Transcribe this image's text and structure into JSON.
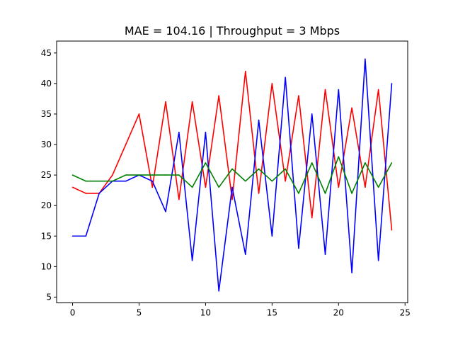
{
  "chart_data": {
    "type": "line",
    "title": "MAE = 104.16 | Throughput = 3 Mbps",
    "xlabel": "",
    "ylabel": "",
    "xlim": [
      -1.2,
      25.2
    ],
    "ylim": [
      4.05,
      46.95
    ],
    "xticks": [
      0,
      5,
      10,
      15,
      20,
      25
    ],
    "yticks": [
      5,
      10,
      15,
      20,
      25,
      30,
      35,
      40,
      45
    ],
    "grid": false,
    "x": [
      0,
      1,
      2,
      3,
      4,
      5,
      6,
      7,
      8,
      9,
      10,
      11,
      12,
      13,
      14,
      15,
      16,
      17,
      18,
      19,
      20,
      21,
      22,
      23,
      24
    ],
    "series": [
      {
        "color": "#ff0000",
        "x": [
          0,
          1,
          2,
          3,
          4,
          5,
          6,
          7,
          8,
          9,
          10,
          11,
          12,
          13,
          14,
          15,
          16,
          17,
          18,
          19,
          20,
          21,
          22,
          23,
          24
        ],
        "values": [
          23,
          22,
          22,
          25,
          30,
          35,
          23,
          37,
          21,
          37,
          23,
          38,
          21,
          42,
          22,
          40,
          24,
          38,
          18,
          39,
          23,
          36,
          23,
          39,
          16
        ]
      },
      {
        "color": "#0000ff",
        "x": [
          0,
          1,
          2,
          3,
          4,
          5,
          6,
          7,
          8,
          9,
          10,
          11,
          12,
          13,
          14,
          15,
          16,
          17,
          18,
          19,
          20,
          21,
          22,
          23,
          24
        ],
        "values": [
          15,
          15,
          22,
          24,
          24,
          25,
          24,
          19,
          32,
          11,
          32,
          6,
          23,
          12,
          34,
          15,
          41,
          13,
          35,
          12,
          39,
          9,
          44,
          11,
          40
        ]
      },
      {
        "color": "#008000",
        "x": [
          0,
          1,
          2,
          3,
          4,
          5,
          6,
          7,
          8,
          9,
          10,
          11,
          12,
          13,
          14,
          15,
          16,
          17,
          18,
          19,
          20,
          21,
          22,
          23,
          24
        ],
        "values": [
          25,
          24,
          24,
          24,
          25,
          25,
          25,
          25,
          25,
          23,
          27,
          23,
          26,
          24,
          26,
          24,
          26,
          22,
          27,
          22,
          28,
          22,
          27,
          23,
          27
        ]
      }
    ]
  }
}
